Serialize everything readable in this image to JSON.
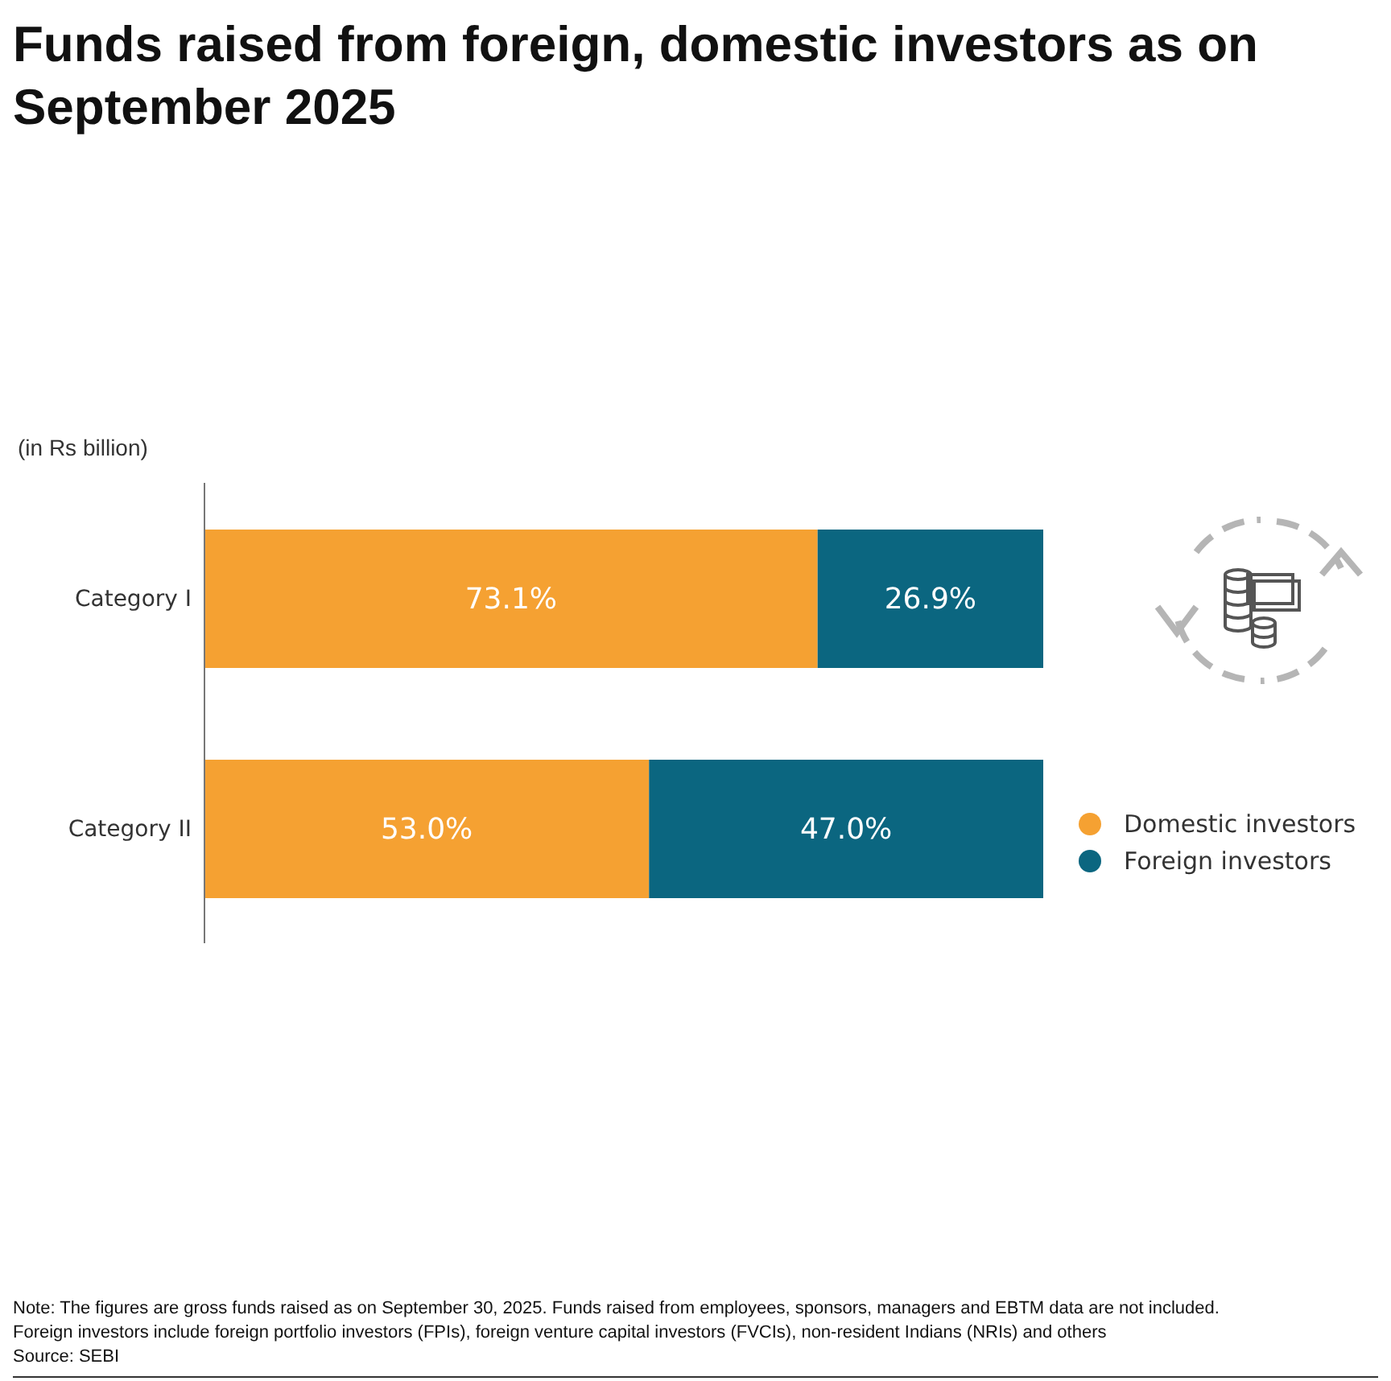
{
  "chart_data": {
    "type": "bar",
    "orientation": "horizontal",
    "stacked": true,
    "xlim": [
      0,
      100
    ],
    "tick_labels": false,
    "title": "Funds raised from foreign, domestic investors as on September 2025",
    "subtitle": "(in Rs billion)",
    "categories": [
      "Category I",
      "Category II"
    ],
    "series": [
      {
        "name": "Domestic investors",
        "color": "#f5a132",
        "values": [
          73.1,
          53.0
        ],
        "value_labels": [
          "73.1%",
          "53.0%"
        ]
      },
      {
        "name": "Foreign investors",
        "color": "#0b6680",
        "values": [
          26.9,
          47.0
        ],
        "value_labels": [
          "26.9%",
          "47.0%"
        ]
      }
    ],
    "legend": "right",
    "annotations": [
      "Note: The figures are gross funds raised as on September 30, 2025. Funds raised from employees, sponsors, managers and EBTM data are not included.",
      "Foreign investors include foreign portfolio investors (FPIs), foreign venture capital investors (FVCIs), non-resident Indians (NRIs) and others",
      "Source: SEBI"
    ]
  }
}
